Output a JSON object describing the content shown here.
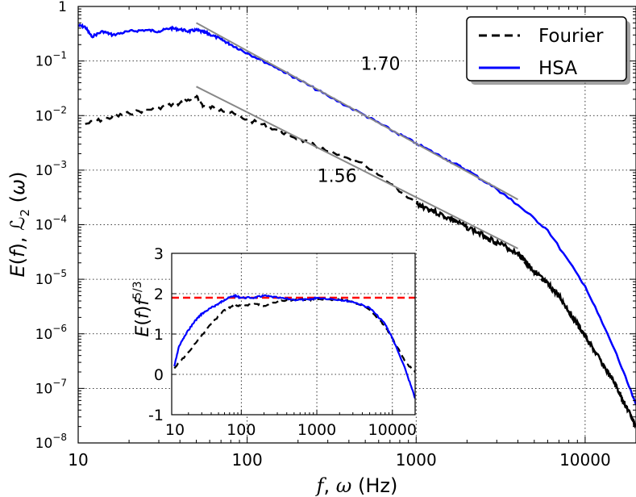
{
  "chart_data": [
    {
      "type": "line",
      "scale": {
        "x": "log",
        "y": "log"
      },
      "xlim": [
        10,
        20000
      ],
      "ylim": [
        1e-08,
        1
      ],
      "xlabel_parts": {
        "f": "f",
        "comma": ", ",
        "omega": "ω",
        "unit": " (Hz)"
      },
      "ylabel_parts": {
        "E": "E",
        "lp": "(",
        "f": "f",
        "rp": ")",
        "sep": ", ",
        "L": "ℒ",
        "sub": "2",
        "lp2": " (",
        "omega": "ω",
        "rp2": ")"
      },
      "x_ticks": [
        {
          "value": 10,
          "label": "10"
        },
        {
          "value": 100,
          "label": "100"
        },
        {
          "value": 1000,
          "label": "1000"
        },
        {
          "value": 10000,
          "label": "10000"
        }
      ],
      "y_ticks": [
        {
          "value": 1,
          "base": "1",
          "exp": ""
        },
        {
          "value": 0.1,
          "base": "10",
          "exp": "−1"
        },
        {
          "value": 0.01,
          "base": "10",
          "exp": "−2"
        },
        {
          "value": 0.001,
          "base": "10",
          "exp": "−3"
        },
        {
          "value": 0.0001,
          "base": "10",
          "exp": "−4"
        },
        {
          "value": 1e-05,
          "base": "10",
          "exp": "−5"
        },
        {
          "value": 1e-06,
          "base": "10",
          "exp": "−6"
        },
        {
          "value": 1e-07,
          "base": "10",
          "exp": "−7"
        },
        {
          "value": 1e-08,
          "base": "10",
          "exp": "−8"
        }
      ],
      "series": [
        {
          "name": "Fourier",
          "color": "#000000",
          "style": "dashed",
          "x": [
            11,
            15,
            20,
            30,
            40,
            50,
            55,
            70,
            100,
            150,
            200,
            300,
            500,
            1000,
            2000,
            4000,
            5000,
            7000,
            10000,
            15000,
            20000
          ],
          "y": [
            0.007,
            0.009,
            0.011,
            0.014,
            0.017,
            0.022,
            0.015,
            0.013,
            0.0085,
            0.0055,
            0.0038,
            0.0022,
            0.0012,
            0.00025,
            9e-05,
            3e-05,
            1.4e-05,
            5e-06,
            9e-07,
            1.2e-07,
            2e-08
          ]
        },
        {
          "name": "HSA",
          "color": "#0000ff",
          "style": "solid",
          "x": [
            10,
            11,
            12,
            14,
            16,
            20,
            25,
            30,
            35,
            40,
            45,
            50,
            55,
            60,
            70,
            80,
            100,
            150,
            200,
            300,
            500,
            700,
            1000,
            1500,
            2000,
            3000,
            4000,
            6000,
            10000,
            15000,
            20000
          ],
          "y": [
            0.45,
            0.42,
            0.28,
            0.35,
            0.3,
            0.35,
            0.37,
            0.35,
            0.4,
            0.38,
            0.35,
            0.37,
            0.34,
            0.31,
            0.25,
            0.2,
            0.14,
            0.075,
            0.046,
            0.023,
            0.01,
            0.0056,
            0.0031,
            0.0016,
            0.001,
            0.00045,
            0.00023,
            8e-05,
            7.5e-06,
            5e-07,
            5e-08
          ]
        }
      ],
      "fits": [
        {
          "label": "1.70",
          "x": [
            50,
            4000
          ],
          "y": [
            0.5,
            0.00029
          ]
        },
        {
          "label": "1.56",
          "x": [
            50,
            4000
          ],
          "y": [
            0.034,
            3.66e-05
          ]
        }
      ],
      "fit_label_positions": [
        {
          "x": 470,
          "y": 0.09
        },
        {
          "x": 260,
          "y": 0.0008
        }
      ],
      "legend": {
        "position": "top-right",
        "entries": [
          "Fourier",
          "HSA"
        ]
      }
    },
    {
      "type": "line",
      "role": "inset",
      "scale": {
        "x": "log",
        "y": "linear"
      },
      "xlim": [
        12,
        20000
      ],
      "ylim": [
        -1,
        3
      ],
      "ylabel_parts": {
        "E": "E",
        "lp": "(",
        "f": "f",
        "rp": ")",
        "f2": "f",
        "exp": "5/3"
      },
      "x_ticks": [
        {
          "value": 100,
          "label": "100"
        },
        {
          "value": 1000,
          "label": "1000"
        },
        {
          "value": 10000,
          "label": "10000"
        }
      ],
      "extra_x_labels": [
        {
          "value": 10,
          "label": "10"
        }
      ],
      "y_ticks": [
        {
          "value": -1,
          "label": "-1"
        },
        {
          "value": 0,
          "label": "0"
        },
        {
          "value": 1,
          "label": "1"
        },
        {
          "value": 2,
          "label": "2"
        },
        {
          "value": 3,
          "label": "3"
        }
      ],
      "reference_line": {
        "y": 1.9,
        "color": "#ff0000",
        "style": "dashed"
      },
      "series": [
        {
          "name": "Fourier",
          "color": "#000000",
          "style": "dashed",
          "x": [
            13,
            20,
            40,
            60,
            80,
            100,
            150,
            200,
            300,
            500,
            800,
            1000,
            2000,
            3000,
            5000,
            8000,
            10000,
            15000,
            20000
          ],
          "y": [
            0.15,
            0.55,
            1.25,
            1.6,
            1.7,
            1.7,
            1.75,
            1.7,
            1.8,
            1.85,
            1.85,
            1.85,
            1.85,
            1.8,
            1.6,
            1.2,
            0.9,
            0.3,
            0.05
          ]
        },
        {
          "name": "HSA",
          "color": "#0000ff",
          "style": "solid",
          "x": [
            13,
            15,
            20,
            25,
            30,
            40,
            50,
            60,
            80,
            100,
            150,
            200,
            300,
            500,
            800,
            1000,
            2000,
            3000,
            5000,
            8000,
            10000,
            15000,
            20000
          ],
          "y": [
            0.2,
            0.7,
            1.1,
            1.35,
            1.5,
            1.65,
            1.75,
            1.85,
            1.95,
            1.9,
            1.9,
            1.95,
            1.9,
            1.85,
            1.85,
            1.9,
            1.85,
            1.8,
            1.65,
            1.25,
            0.9,
            0.1,
            -0.6
          ]
        }
      ]
    }
  ]
}
